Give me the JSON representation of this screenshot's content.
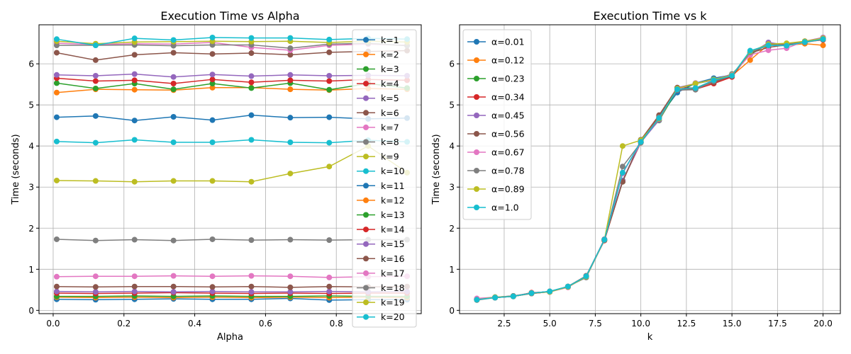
{
  "chart_data": [
    {
      "type": "line",
      "title": "Execution Time vs Alpha",
      "xlabel": "Alpha",
      "ylabel": "Time (seconds)",
      "xlim": [
        -0.04,
        1.04
      ],
      "ylim": [
        -0.08,
        6.95
      ],
      "xticks": [
        0.0,
        0.2,
        0.4,
        0.6,
        0.8
      ],
      "yticks": [
        0,
        1,
        2,
        3,
        4,
        5,
        6
      ],
      "grid": true,
      "legend_position": "right",
      "x": [
        0.01,
        0.12,
        0.23,
        0.34,
        0.45,
        0.56,
        0.67,
        0.78,
        0.89,
        1.0
      ],
      "series": [
        {
          "name": "k=1",
          "color": "#1f77b4",
          "values": [
            0.27,
            0.26,
            0.27,
            0.28,
            0.27,
            0.27,
            0.29,
            0.25,
            0.26,
            0.26
          ]
        },
        {
          "name": "k=2",
          "color": "#ff7f0e",
          "values": [
            0.32,
            0.31,
            0.32,
            0.31,
            0.32,
            0.31,
            0.32,
            0.31,
            0.32,
            0.31
          ]
        },
        {
          "name": "k=3",
          "color": "#2ca02c",
          "values": [
            0.34,
            0.34,
            0.35,
            0.34,
            0.35,
            0.34,
            0.34,
            0.35,
            0.34,
            0.34
          ]
        },
        {
          "name": "k=4",
          "color": "#d62728",
          "values": [
            0.42,
            0.41,
            0.42,
            0.43,
            0.42,
            0.41,
            0.42,
            0.41,
            0.42,
            0.42
          ]
        },
        {
          "name": "k=5",
          "color": "#9467bd",
          "values": [
            0.46,
            0.45,
            0.46,
            0.45,
            0.46,
            0.45,
            0.45,
            0.46,
            0.45,
            0.46
          ]
        },
        {
          "name": "k=6",
          "color": "#8c564b",
          "values": [
            0.58,
            0.57,
            0.58,
            0.58,
            0.57,
            0.58,
            0.56,
            0.58,
            0.57,
            0.58
          ]
        },
        {
          "name": "k=7",
          "color": "#e377c2",
          "values": [
            0.82,
            0.83,
            0.83,
            0.84,
            0.83,
            0.84,
            0.83,
            0.8,
            0.82,
            0.83
          ]
        },
        {
          "name": "k=8",
          "color": "#7f7f7f",
          "values": [
            1.73,
            1.7,
            1.72,
            1.7,
            1.73,
            1.71,
            1.72,
            1.71,
            1.72,
            1.72
          ]
        },
        {
          "name": "k=9",
          "color": "#bcbd22",
          "values": [
            3.16,
            3.15,
            3.13,
            3.15,
            3.15,
            3.13,
            3.33,
            3.5,
            4.0,
            3.35
          ]
        },
        {
          "name": "k=10",
          "color": "#17becf",
          "values": [
            4.11,
            4.08,
            4.15,
            4.09,
            4.09,
            4.15,
            4.09,
            4.08,
            4.14,
            4.1
          ]
        },
        {
          "name": "k=11",
          "color": "#1f77b4",
          "values": [
            4.7,
            4.73,
            4.62,
            4.71,
            4.63,
            4.75,
            4.69,
            4.7,
            4.66,
            4.68
          ]
        },
        {
          "name": "k=12",
          "color": "#ff7f0e",
          "values": [
            5.3,
            5.38,
            5.37,
            5.36,
            5.42,
            5.42,
            5.38,
            5.36,
            5.4,
            5.38
          ]
        },
        {
          "name": "k=13",
          "color": "#2ca02c",
          "values": [
            5.53,
            5.4,
            5.52,
            5.38,
            5.52,
            5.41,
            5.53,
            5.37,
            5.52,
            5.41
          ]
        },
        {
          "name": "k=14",
          "color": "#d62728",
          "values": [
            5.65,
            5.58,
            5.6,
            5.52,
            5.62,
            5.55,
            5.6,
            5.58,
            5.62,
            5.6
          ]
        },
        {
          "name": "k=15",
          "color": "#9467bd",
          "values": [
            5.73,
            5.71,
            5.75,
            5.68,
            5.74,
            5.7,
            5.73,
            5.71,
            5.72,
            5.71
          ]
        },
        {
          "name": "k=16",
          "color": "#8c564b",
          "values": [
            6.27,
            6.09,
            6.22,
            6.27,
            6.24,
            6.26,
            6.22,
            6.28,
            6.3,
            6.32
          ]
        },
        {
          "name": "k=17",
          "color": "#e377c2",
          "values": [
            6.5,
            6.47,
            6.49,
            6.48,
            6.52,
            6.4,
            6.33,
            6.45,
            6.48,
            6.45
          ]
        },
        {
          "name": "k=18",
          "color": "#7f7f7f",
          "values": [
            6.45,
            6.45,
            6.46,
            6.44,
            6.46,
            6.46,
            6.38,
            6.48,
            6.5,
            6.44
          ]
        },
        {
          "name": "k=19",
          "color": "#bcbd22",
          "values": [
            6.55,
            6.49,
            6.53,
            6.54,
            6.55,
            6.54,
            6.55,
            6.52,
            6.55,
            6.53
          ]
        },
        {
          "name": "k=20",
          "color": "#17becf",
          "values": [
            6.6,
            6.45,
            6.62,
            6.58,
            6.64,
            6.63,
            6.63,
            6.59,
            6.62,
            6.6
          ]
        }
      ]
    },
    {
      "type": "line",
      "title": "Execution Time vs k",
      "xlabel": "k",
      "ylabel": "Time (seconds)",
      "xlim": [
        0.05,
        20.95
      ],
      "ylim": [
        -0.08,
        6.95
      ],
      "xticks": [
        2.5,
        5.0,
        7.5,
        10.0,
        12.5,
        15.0,
        17.5,
        20.0
      ],
      "yticks": [
        0,
        1,
        2,
        3,
        4,
        5,
        6
      ],
      "grid": true,
      "legend_position": "upper left",
      "x": [
        1,
        2,
        3,
        4,
        5,
        6,
        7,
        8,
        9,
        10,
        11,
        12,
        13,
        14,
        15,
        16,
        17,
        18,
        19,
        20
      ],
      "series": [
        {
          "name": "α=0.01",
          "color": "#1f77b4",
          "values": [
            0.27,
            0.32,
            0.34,
            0.42,
            0.46,
            0.58,
            0.82,
            1.73,
            3.16,
            4.11,
            4.7,
            5.3,
            5.53,
            5.65,
            5.73,
            6.27,
            6.5,
            6.45,
            6.55,
            6.6
          ]
        },
        {
          "name": "α=0.12",
          "color": "#ff7f0e",
          "values": [
            0.26,
            0.31,
            0.34,
            0.41,
            0.45,
            0.57,
            0.83,
            1.7,
            3.15,
            4.08,
            4.73,
            5.38,
            5.4,
            5.58,
            5.71,
            6.09,
            6.47,
            6.45,
            6.49,
            6.45
          ]
        },
        {
          "name": "α=0.23",
          "color": "#2ca02c",
          "values": [
            0.27,
            0.32,
            0.35,
            0.42,
            0.46,
            0.58,
            0.83,
            1.72,
            3.13,
            4.15,
            4.62,
            5.37,
            5.52,
            5.6,
            5.75,
            6.22,
            6.49,
            6.46,
            6.53,
            6.62
          ]
        },
        {
          "name": "α=0.34",
          "color": "#d62728",
          "values": [
            0.28,
            0.31,
            0.34,
            0.43,
            0.45,
            0.58,
            0.84,
            1.7,
            3.15,
            4.09,
            4.71,
            5.36,
            5.38,
            5.52,
            5.68,
            6.27,
            6.48,
            6.44,
            6.54,
            6.58
          ]
        },
        {
          "name": "α=0.45",
          "color": "#9467bd",
          "values": [
            0.27,
            0.32,
            0.35,
            0.42,
            0.46,
            0.57,
            0.83,
            1.73,
            3.15,
            4.09,
            4.63,
            5.42,
            5.52,
            5.62,
            5.74,
            6.24,
            6.52,
            6.46,
            6.55,
            6.64
          ]
        },
        {
          "name": "α=0.56",
          "color": "#8c564b",
          "values": [
            0.27,
            0.31,
            0.34,
            0.41,
            0.45,
            0.58,
            0.84,
            1.71,
            3.13,
            4.15,
            4.75,
            5.42,
            5.41,
            5.55,
            5.7,
            6.26,
            6.4,
            6.46,
            6.54,
            6.63
          ]
        },
        {
          "name": "α=0.67",
          "color": "#e377c2",
          "values": [
            0.29,
            0.32,
            0.34,
            0.42,
            0.45,
            0.56,
            0.83,
            1.72,
            3.33,
            4.09,
            4.69,
            5.38,
            5.53,
            5.6,
            5.73,
            6.22,
            6.33,
            6.38,
            6.55,
            6.63
          ]
        },
        {
          "name": "α=0.78",
          "color": "#7f7f7f",
          "values": [
            0.25,
            0.31,
            0.35,
            0.41,
            0.46,
            0.58,
            0.8,
            1.71,
            3.5,
            4.08,
            4.7,
            5.36,
            5.37,
            5.58,
            5.71,
            6.28,
            6.45,
            6.48,
            6.52,
            6.59
          ]
        },
        {
          "name": "α=0.89",
          "color": "#bcbd22",
          "values": [
            0.26,
            0.32,
            0.34,
            0.42,
            0.45,
            0.57,
            0.82,
            1.72,
            4.0,
            4.14,
            4.66,
            5.4,
            5.52,
            5.62,
            5.72,
            6.3,
            6.48,
            6.5,
            6.55,
            6.62
          ]
        },
        {
          "name": "α=1.0",
          "color": "#17becf",
          "values": [
            0.26,
            0.31,
            0.34,
            0.42,
            0.46,
            0.58,
            0.83,
            1.72,
            3.35,
            4.1,
            4.68,
            5.38,
            5.41,
            5.6,
            5.71,
            6.32,
            6.45,
            6.44,
            6.53,
            6.6
          ]
        }
      ]
    }
  ]
}
